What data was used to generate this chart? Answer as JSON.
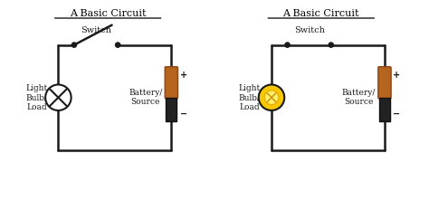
{
  "title": "A Basic Circuit",
  "bg_color": "#ffffff",
  "line_color": "#1a1a1a",
  "circuit1": {
    "title": "A Basic Circuit",
    "switch_label": "Switch",
    "bulb_label": "Light\nBulb/\nLoad",
    "battery_label": "Battery/\nSource",
    "bulb_off": true,
    "switch_open": true
  },
  "circuit2": {
    "title": "A Basic Circuit",
    "switch_label": "Switch",
    "bulb_label": "Light\nBulb/\nLoad",
    "battery_label": "Battery/\nSource",
    "bulb_on": true,
    "switch_closed": true
  }
}
